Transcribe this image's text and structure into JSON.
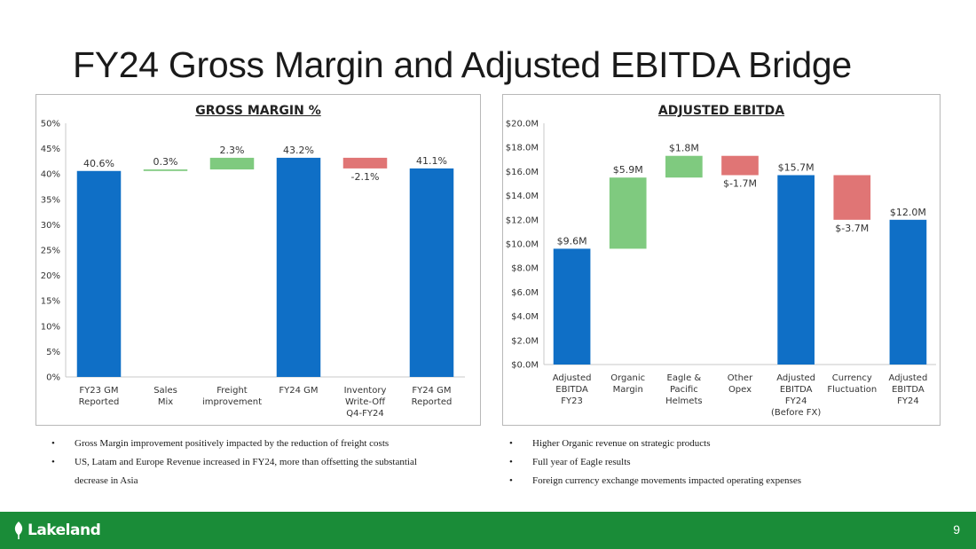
{
  "slide": {
    "title": "FY24 Gross Margin and Adjusted EBITDA Bridge",
    "page_number": "9"
  },
  "logo": {
    "text": "Lakeland"
  },
  "colors": {
    "blue": "#0f6fc6",
    "green": "#7fca7f",
    "red": "#e07575",
    "footer": "#1a8c38"
  },
  "bullets_left": [
    "Gross Margin improvement positively impacted by the reduction of freight costs",
    "US, Latam and Europe Revenue increased in FY24, more than offsetting the substantial decrease in Asia"
  ],
  "bullets_right": [
    "Higher Organic revenue on strategic products",
    "Full year of Eagle results",
    "Foreign currency exchange movements impacted operating expenses"
  ],
  "chart_data": [
    {
      "type": "bar",
      "subtype": "waterfall",
      "title": "GROSS MARGIN %",
      "ylim": [
        0,
        50
      ],
      "yticks": [
        0,
        5,
        10,
        15,
        20,
        25,
        30,
        35,
        40,
        45,
        50
      ],
      "ytick_labels": [
        "0%",
        "5%",
        "10%",
        "15%",
        "20%",
        "25%",
        "30%",
        "35%",
        "40%",
        "45%",
        "50%"
      ],
      "grid": false,
      "bars": [
        {
          "category": [
            "FY23 GM",
            "Reported"
          ],
          "start": 0,
          "end": 40.6,
          "kind": "total",
          "label": "40.6%"
        },
        {
          "category": [
            "Sales",
            "Mix"
          ],
          "start": 40.6,
          "end": 40.9,
          "kind": "increase",
          "label": "0.3%"
        },
        {
          "category": [
            "Freight",
            "improvement"
          ],
          "start": 40.9,
          "end": 43.2,
          "kind": "increase",
          "label": "2.3%"
        },
        {
          "category": [
            "FY24 GM"
          ],
          "start": 0,
          "end": 43.2,
          "kind": "total",
          "label": "43.2%"
        },
        {
          "category": [
            "Inventory",
            "Write-Off",
            "Q4-FY24"
          ],
          "start": 43.2,
          "end": 41.1,
          "kind": "decrease",
          "label": "-2.1%"
        },
        {
          "category": [
            "FY24 GM",
            "Reported"
          ],
          "start": 0,
          "end": 41.1,
          "kind": "total",
          "label": "41.1%"
        }
      ]
    },
    {
      "type": "bar",
      "subtype": "waterfall",
      "title": "ADJUSTED EBITDA",
      "ylim": [
        0,
        20
      ],
      "yticks": [
        0,
        2,
        4,
        6,
        8,
        10,
        12,
        14,
        16,
        18,
        20
      ],
      "ytick_labels": [
        "$0.0M",
        "$2.0M",
        "$4.0M",
        "$6.0M",
        "$8.0M",
        "$10.0M",
        "$12.0M",
        "$14.0M",
        "$16.0M",
        "$18.0M",
        "$20.0M"
      ],
      "grid": false,
      "bars": [
        {
          "category": [
            "Adjusted",
            "EBITDA",
            "FY23"
          ],
          "start": 0,
          "end": 9.6,
          "kind": "total",
          "label": "$9.6M"
        },
        {
          "category": [
            "Organic",
            "Margin"
          ],
          "start": 9.6,
          "end": 15.5,
          "kind": "increase",
          "label": "$5.9M"
        },
        {
          "category": [
            "Eagle &",
            "Pacific",
            "Helmets"
          ],
          "start": 15.5,
          "end": 17.3,
          "kind": "increase",
          "label": "$1.8M"
        },
        {
          "category": [
            "Other",
            "Opex"
          ],
          "start": 17.3,
          "end": 15.7,
          "kind": "decrease",
          "label": "$-1.7M"
        },
        {
          "category": [
            "Adjusted",
            "EBITDA",
            "FY24",
            "(Before FX)"
          ],
          "start": 0,
          "end": 15.7,
          "kind": "total",
          "label": "$15.7M"
        },
        {
          "category": [
            "Currency",
            "Fluctuation"
          ],
          "start": 15.7,
          "end": 12.0,
          "kind": "decrease",
          "label": "$-3.7M"
        },
        {
          "category": [
            "Adjusted",
            "EBITDA",
            "FY24"
          ],
          "start": 0,
          "end": 12.0,
          "kind": "total",
          "label": "$12.0M"
        }
      ]
    }
  ]
}
